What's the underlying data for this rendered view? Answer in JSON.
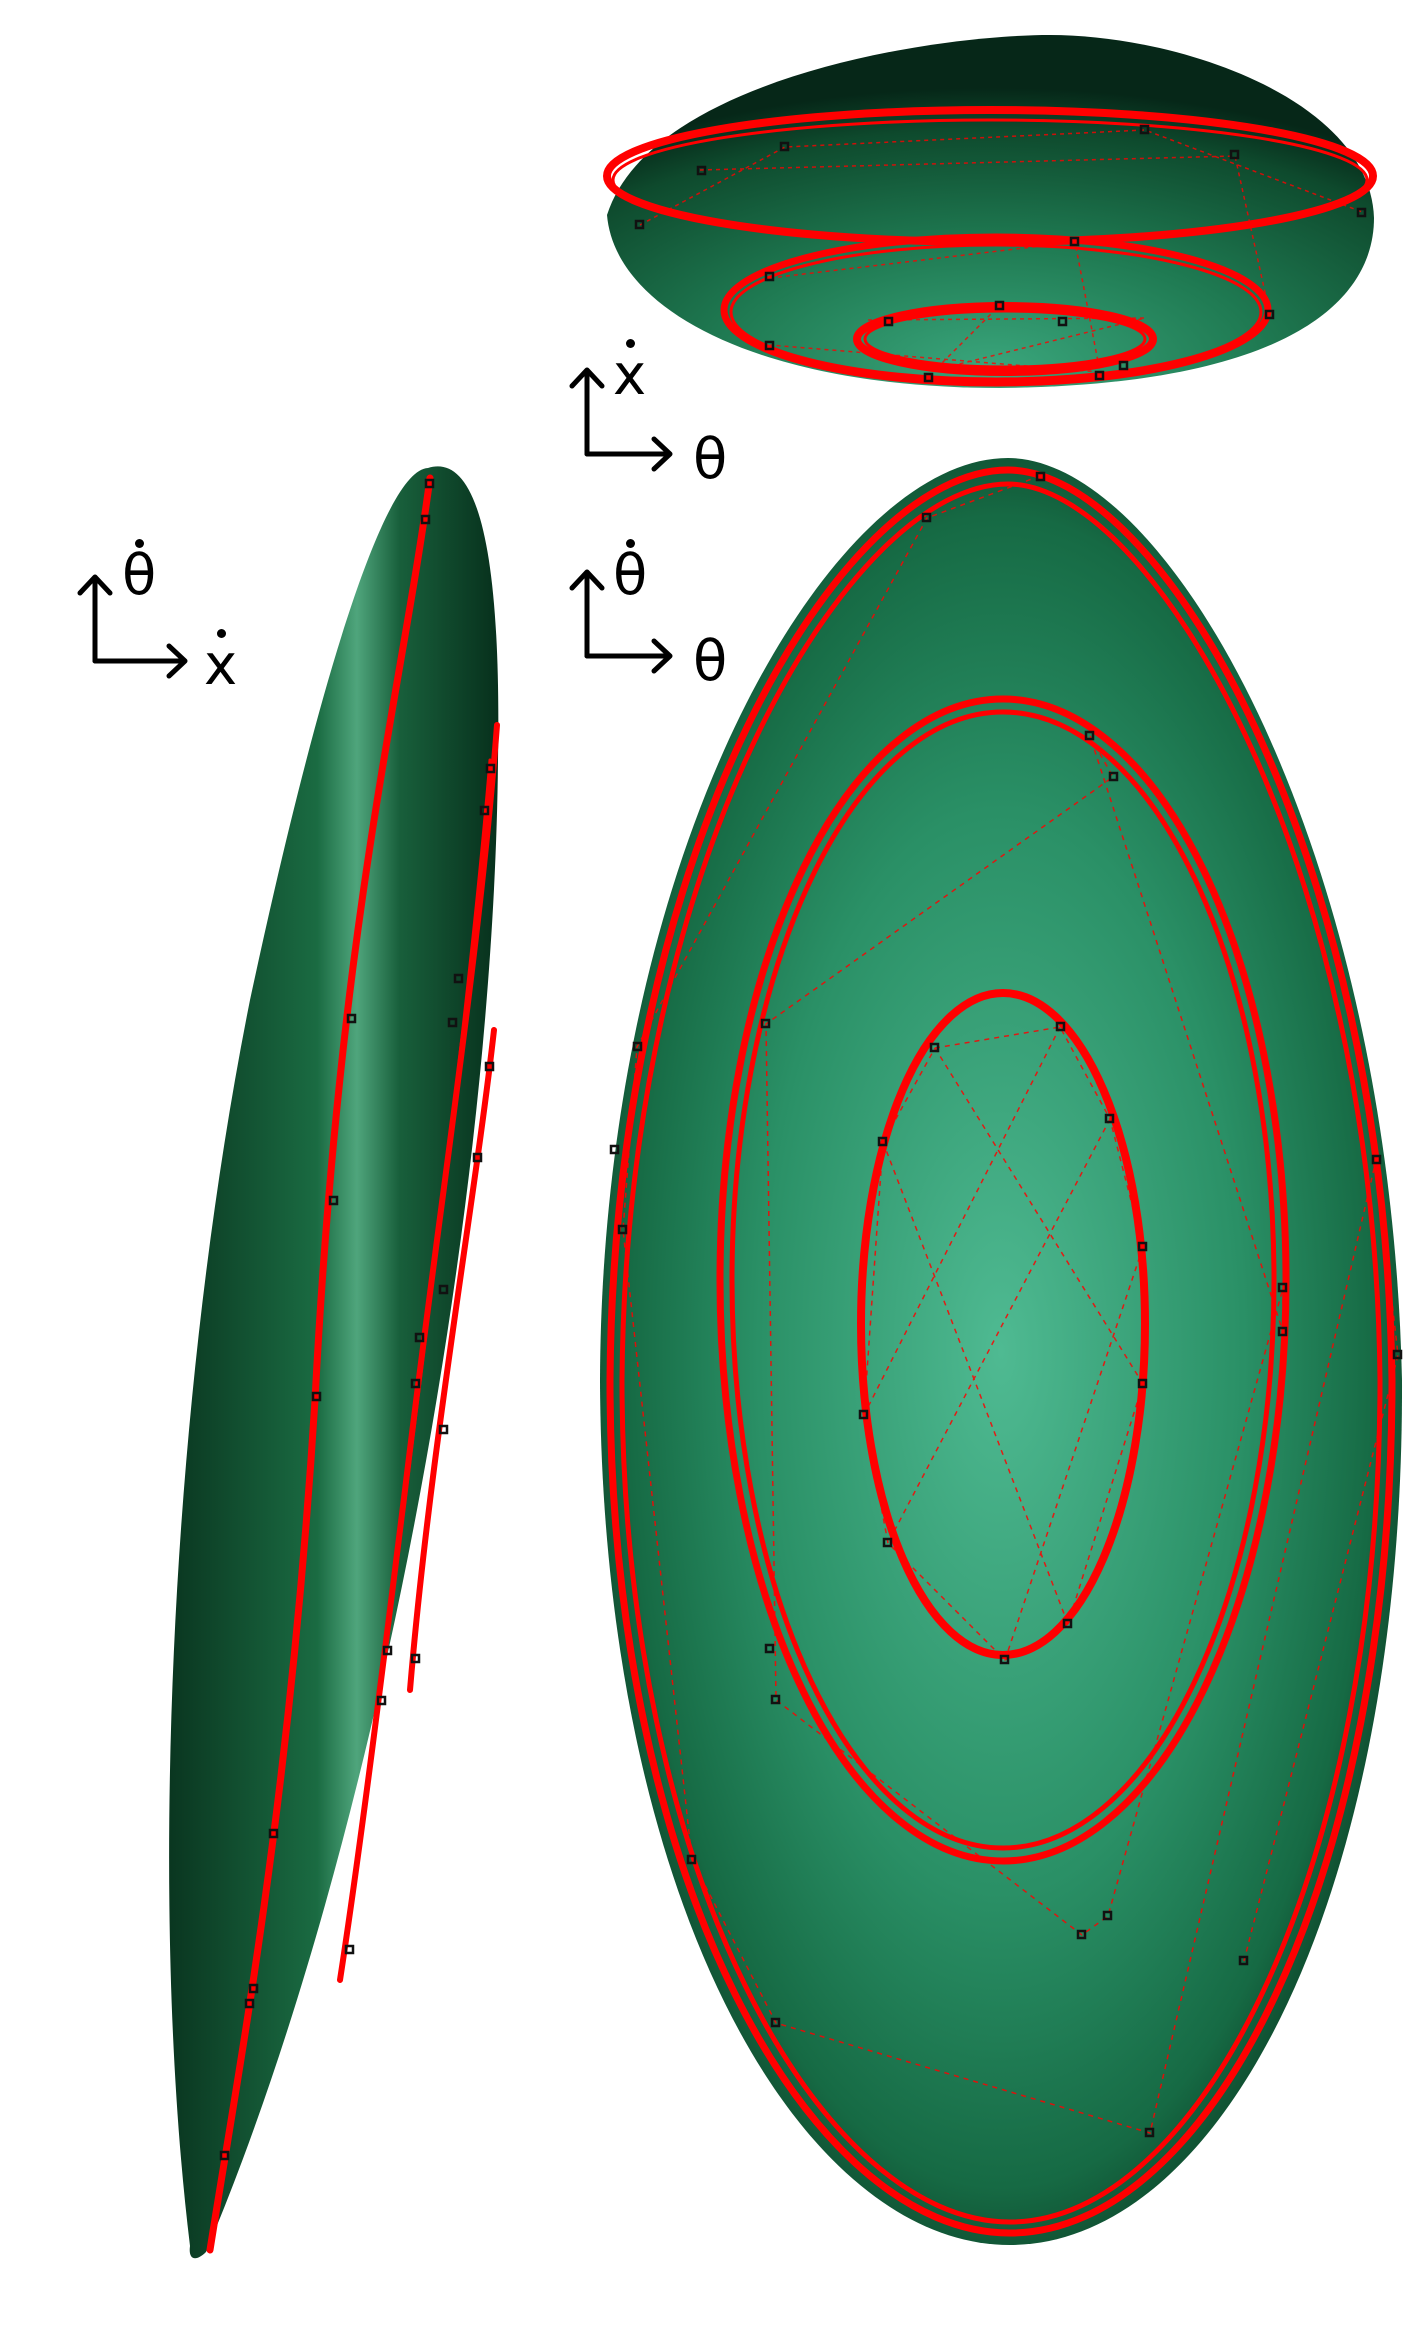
{
  "colors": {
    "surface_light": "#4fba92",
    "surface_mid": "#1d7a52",
    "surface_dark": "#0b3a22",
    "trajectory": "#ff0000",
    "marker": "#111111",
    "axis": "#000000"
  },
  "views": [
    {
      "name": "top-view",
      "axes": {
        "vertical": "x",
        "horizontal": "θ",
        "vertical_dot": true,
        "horizontal_dot": false
      }
    },
    {
      "name": "left-view",
      "axes": {
        "vertical": "θ",
        "horizontal": "x",
        "vertical_dot": true,
        "horizontal_dot": true
      }
    },
    {
      "name": "main-view",
      "axes": {
        "vertical": "θ",
        "horizontal": "θ",
        "vertical_dot": true,
        "horizontal_dot": false
      }
    }
  ]
}
